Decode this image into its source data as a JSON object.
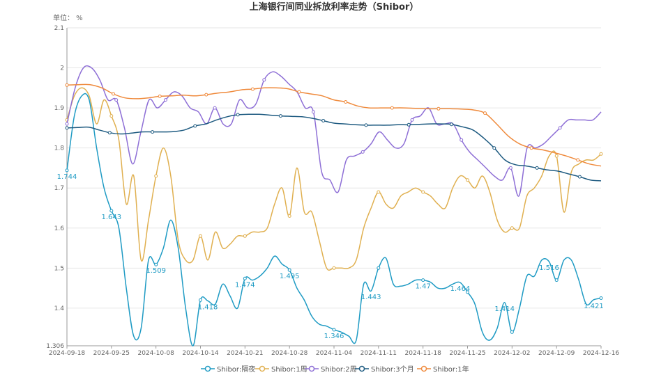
{
  "chart_data": {
    "type": "line",
    "title": "上海银行间同业拆放利率走势（Shibor）",
    "unit_label": "单位： %",
    "ylim": [
      1.306,
      2.1
    ],
    "y_ticks": [
      "1.306",
      "1.4",
      "1.5",
      "1.6",
      "1.7",
      "1.8",
      "1.9",
      "2",
      "2.1"
    ],
    "x_ticks": [
      "2024-09-18",
      "2024-09-25",
      "2024-10-08",
      "2024-10-14",
      "2024-10-21",
      "2024-10-28",
      "2024-11-04",
      "2024-11-11",
      "2024-11-18",
      "2024-11-25",
      "2024-12-02",
      "2024-12-09",
      "2024-12-16"
    ],
    "grid": true,
    "legend_position": "bottom",
    "series": [
      {
        "name": "Shibor:隔夜",
        "color": "#1f9bc4",
        "values": [
          1.744,
          1.88,
          1.93,
          1.92,
          1.8,
          1.7,
          1.643,
          1.6,
          1.45,
          1.33,
          1.35,
          1.52,
          1.509,
          1.55,
          1.62,
          1.55,
          1.4,
          1.306,
          1.42,
          1.418,
          1.41,
          1.46,
          1.43,
          1.4,
          1.474,
          1.47,
          1.48,
          1.5,
          1.53,
          1.51,
          1.495,
          1.45,
          1.42,
          1.38,
          1.36,
          1.355,
          1.346,
          1.34,
          1.33,
          1.32,
          1.46,
          1.443,
          1.5,
          1.525,
          1.46,
          1.455,
          1.46,
          1.47,
          1.47,
          1.465,
          1.45,
          1.45,
          1.46,
          1.464,
          1.44,
          1.41,
          1.34,
          1.32,
          1.35,
          1.414,
          1.34,
          1.4,
          1.48,
          1.48,
          1.52,
          1.516,
          1.47,
          1.52,
          1.52,
          1.47,
          1.41,
          1.421,
          1.425
        ],
        "labels": [
          {
            "i": 0,
            "text": "1.744"
          },
          {
            "i": 6,
            "text": "1.643"
          },
          {
            "i": 12,
            "text": "1.509"
          },
          {
            "i": 19,
            "text": "1.418"
          },
          {
            "i": 24,
            "text": "1.474"
          },
          {
            "i": 30,
            "text": "1.495"
          },
          {
            "i": 36,
            "text": "1.346"
          },
          {
            "i": 41,
            "text": "1.443"
          },
          {
            "i": 48,
            "text": "1.47"
          },
          {
            "i": 53,
            "text": "1.464"
          },
          {
            "i": 59,
            "text": "1.414"
          },
          {
            "i": 65,
            "text": "1.516"
          },
          {
            "i": 71,
            "text": "1.421"
          }
        ]
      },
      {
        "name": "Shibor:1周",
        "color": "#e0b050",
        "values": [
          1.87,
          1.93,
          1.95,
          1.93,
          1.86,
          1.92,
          1.88,
          1.82,
          1.66,
          1.73,
          1.52,
          1.62,
          1.73,
          1.8,
          1.73,
          1.57,
          1.52,
          1.52,
          1.58,
          1.52,
          1.59,
          1.55,
          1.56,
          1.58,
          1.58,
          1.59,
          1.59,
          1.6,
          1.66,
          1.7,
          1.63,
          1.75,
          1.64,
          1.64,
          1.57,
          1.5,
          1.5,
          1.5,
          1.5,
          1.52,
          1.6,
          1.65,
          1.69,
          1.66,
          1.65,
          1.68,
          1.69,
          1.7,
          1.69,
          1.68,
          1.66,
          1.65,
          1.7,
          1.73,
          1.72,
          1.7,
          1.73,
          1.69,
          1.62,
          1.59,
          1.6,
          1.6,
          1.68,
          1.7,
          1.73,
          1.78,
          1.78,
          1.64,
          1.74,
          1.76,
          1.77,
          1.77,
          1.785
        ]
      },
      {
        "name": "Shibor:2周",
        "color": "#8e6fd6",
        "values": [
          1.86,
          1.95,
          2.0,
          2.0,
          1.97,
          1.92,
          1.92,
          1.85,
          1.76,
          1.84,
          1.92,
          1.9,
          1.92,
          1.94,
          1.93,
          1.9,
          1.89,
          1.86,
          1.9,
          1.86,
          1.86,
          1.92,
          1.9,
          1.91,
          1.97,
          1.99,
          1.98,
          1.96,
          1.94,
          1.9,
          1.89,
          1.74,
          1.72,
          1.69,
          1.77,
          1.78,
          1.79,
          1.81,
          1.84,
          1.82,
          1.8,
          1.81,
          1.87,
          1.88,
          1.9,
          1.86,
          1.86,
          1.86,
          1.82,
          1.79,
          1.77,
          1.75,
          1.73,
          1.72,
          1.75,
          1.68,
          1.8,
          1.8,
          1.81,
          1.83,
          1.85,
          1.87,
          1.87,
          1.87,
          1.87,
          1.89
        ]
      },
      {
        "name": "Shibor:3个月",
        "color": "#1d5a80",
        "values": [
          1.85,
          1.851,
          1.852,
          1.845,
          1.838,
          1.835,
          1.837,
          1.84,
          1.84,
          1.84,
          1.841,
          1.845,
          1.855,
          1.86,
          1.87,
          1.878,
          1.883,
          1.884,
          1.884,
          1.882,
          1.88,
          1.879,
          1.878,
          1.874,
          1.868,
          1.862,
          1.86,
          1.858,
          1.857,
          1.857,
          1.857,
          1.858,
          1.858,
          1.859,
          1.86,
          1.86,
          1.859,
          1.853,
          1.845,
          1.825,
          1.8,
          1.77,
          1.758,
          1.755,
          1.75,
          1.745,
          1.742,
          1.735,
          1.728,
          1.72,
          1.718
        ]
      },
      {
        "name": "Shibor:1年",
        "color": "#ef8a3c",
        "values": [
          1.957,
          1.958,
          1.958,
          1.95,
          1.935,
          1.925,
          1.923,
          1.925,
          1.929,
          1.93,
          1.932,
          1.93,
          1.933,
          1.937,
          1.94,
          1.945,
          1.947,
          1.95,
          1.95,
          1.948,
          1.94,
          1.935,
          1.93,
          1.92,
          1.915,
          1.905,
          1.9,
          1.9,
          1.9,
          1.9,
          1.899,
          1.898,
          1.898,
          1.898,
          1.897,
          1.895,
          1.887,
          1.86,
          1.83,
          1.81,
          1.8,
          1.795,
          1.788,
          1.78,
          1.77,
          1.76,
          1.755
        ]
      }
    ]
  }
}
